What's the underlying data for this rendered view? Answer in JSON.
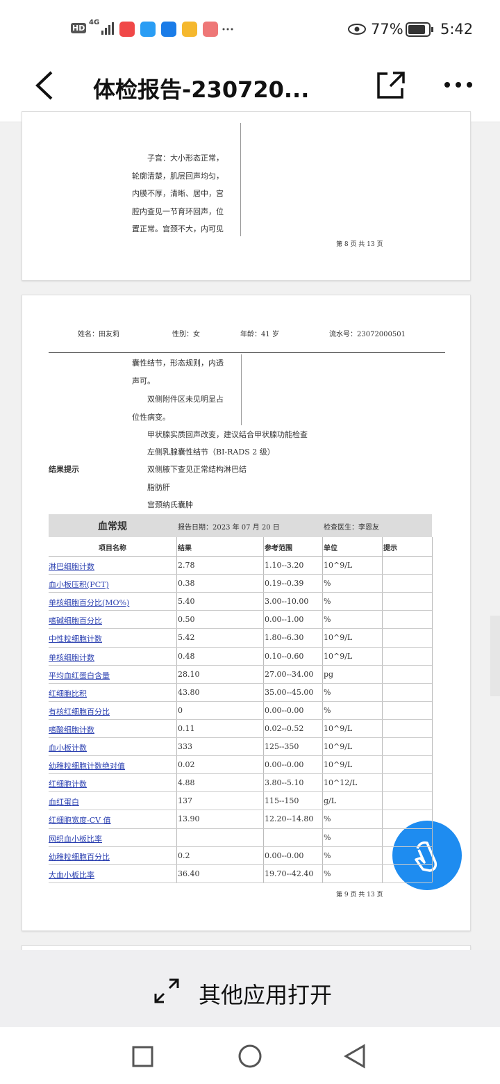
{
  "status_bar": {
    "network": "4G",
    "hd": "HD",
    "battery": "77%",
    "time": "5:42"
  },
  "header": {
    "title": "体检报告-230720..."
  },
  "page8": {
    "lines": [
      "子宫：大小形态正常，",
      "轮廓清楚，肌层回声均匀，",
      "内膜不厚，清晰、居中，宫",
      "腔内查见一节育环回声，位",
      "置正常。宫颈不大，内可见"
    ],
    "footer": "第 8 页 共 13 页"
  },
  "page9": {
    "patient": [
      "姓名：田友莉",
      "性别：女",
      "年龄：41 岁",
      "流水号：23072000501"
    ],
    "lines": [
      "囊性结节，形态规则，内透",
      "声可。",
      "双侧附件区未见明显占",
      "位性病变。"
    ],
    "result_label": "结果提示",
    "results": [
      "甲状腺实质回声改变，建议结合甲状腺功能检查",
      "左侧乳腺囊性结节（BI-RADS 2 级）",
      "双侧腋下查见正常结构淋巴结",
      "脂肪肝",
      "宫颈纳氏囊肿"
    ],
    "table": {
      "title": "血常规",
      "date": "报告日期：2023 年 07 月 20 日",
      "doctor": "检查医生：李恩友",
      "headers": [
        "项目名称",
        "结果",
        "参考范围",
        "单位",
        "提示"
      ],
      "rows": [
        [
          "淋巴细胞计数",
          "2.78",
          "1.10--3.20",
          "10^9/L"
        ],
        [
          "血小板压积(PCT)",
          "0.38",
          "0.19--0.39",
          "%"
        ],
        [
          "单核细胞百分比(MO%)",
          "5.40",
          "3.00--10.00",
          "%"
        ],
        [
          "嗜碱细胞百分比",
          "0.50",
          "0.00--1.00",
          "%"
        ],
        [
          "中性粒细胞计数",
          "5.42",
          "1.80--6.30",
          "10^9/L"
        ],
        [
          "单核细胞计数",
          "0.48",
          "0.10--0.60",
          "10^9/L"
        ],
        [
          "平均血红蛋白含量",
          "28.10",
          "27.00--34.00",
          "pg"
        ],
        [
          "红细胞比积",
          "43.80",
          "35.00--45.00",
          "%"
        ],
        [
          "有核红细胞百分比",
          "0",
          "0.00--0.00",
          "%"
        ],
        [
          "嗜酸细胞计数",
          "0.11",
          "0.02--0.52",
          "10^9/L"
        ],
        [
          "血小板计数",
          "333",
          "125--350",
          "10^9/L"
        ],
        [
          "幼稚粒细胞计数绝对值",
          "0.02",
          "0.00--0.00",
          "10^9/L"
        ],
        [
          "红细胞计数",
          "4.88",
          "3.80--5.10",
          "10^12/L"
        ],
        [
          "血红蛋白",
          "137",
          "115--150",
          "g/L"
        ],
        [
          "红细胞宽度-CV 值",
          "13.90",
          "12.20--14.80",
          "%"
        ],
        [
          "网织血小板比率",
          null,
          null,
          "%"
        ],
        [
          "幼稚粒细胞百分比",
          "0.2",
          "0.00--0.00",
          "%"
        ],
        [
          "大血小板比率",
          "36.40",
          "19.70--42.40",
          "%"
        ]
      ]
    },
    "footer": "第 9 页 共 13 页"
  },
  "bottom_bar": {
    "open_other": "其他应用打开"
  }
}
